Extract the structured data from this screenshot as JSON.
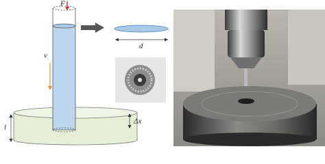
{
  "labels": {
    "force": "F",
    "velocity": "v",
    "diameter": "d",
    "displacement": "Δx",
    "length": "l"
  }
}
